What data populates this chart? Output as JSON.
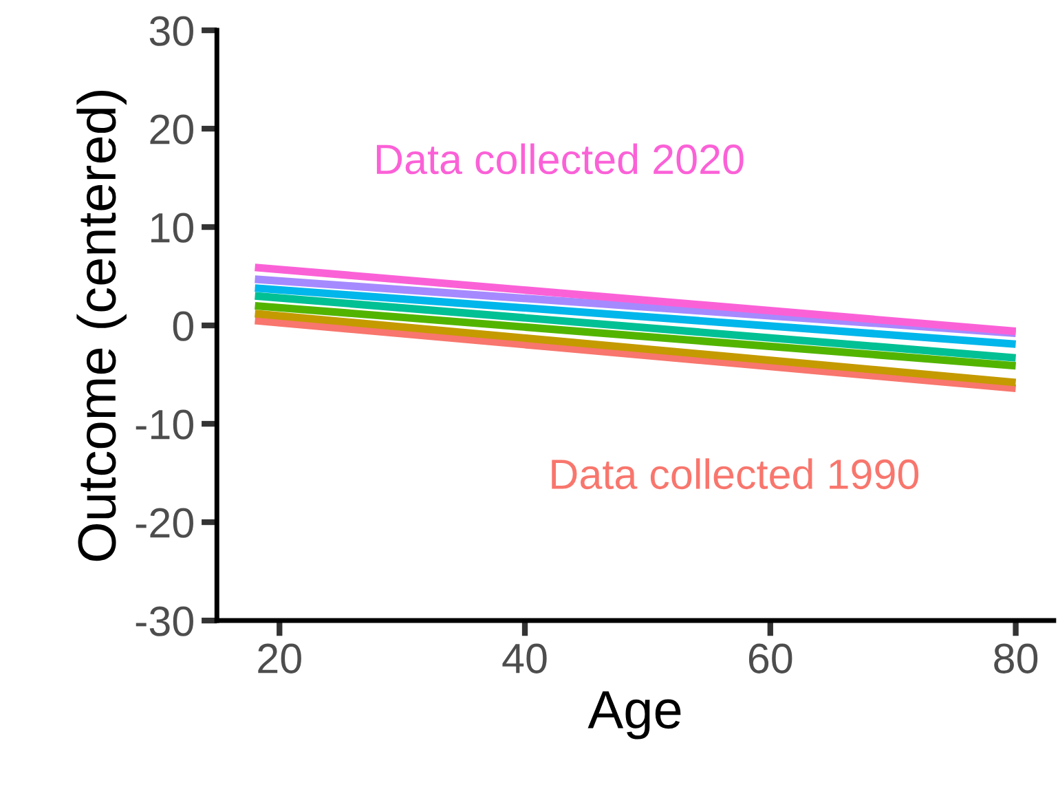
{
  "chart_data": {
    "type": "line",
    "xlabel": "Age",
    "ylabel": "Outcome (centered)",
    "xlim": [
      14.9,
      83.1
    ],
    "ylim": [
      -30,
      30
    ],
    "xticks": [
      20,
      40,
      60,
      80
    ],
    "yticks": [
      30,
      20,
      10,
      0,
      -10,
      -20,
      -30
    ],
    "grid": false,
    "legend": false,
    "line_style": "solid",
    "marker": "none",
    "x": [
      18,
      80
    ],
    "series": [
      {
        "name": "Data collected 1990",
        "color": "#f8766d",
        "values": [
          0.5,
          -6.4
        ]
      },
      {
        "color": "#c49a00",
        "values": [
          1.2,
          -5.8
        ]
      },
      {
        "color": "#53b400",
        "values": [
          2.0,
          -4.1
        ]
      },
      {
        "color": "#00c094",
        "values": [
          3.0,
          -3.3
        ]
      },
      {
        "color": "#00b6eb",
        "values": [
          3.8,
          -1.9
        ]
      },
      {
        "color": "#a58aff",
        "values": [
          4.7,
          -0.8
        ]
      },
      {
        "name": "Data collected 2020",
        "color": "#fb61d7",
        "values": [
          5.9,
          -0.6
        ]
      }
    ]
  }
}
